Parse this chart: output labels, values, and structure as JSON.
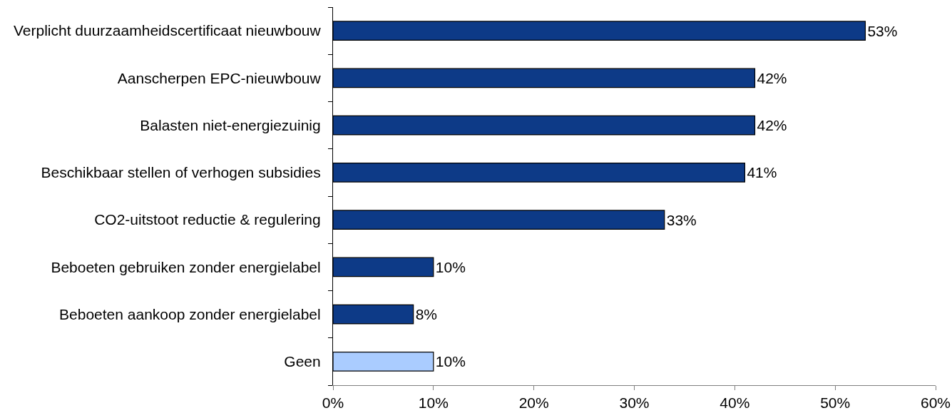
{
  "chart_data": {
    "type": "bar",
    "orientation": "horizontal",
    "categories": [
      "Verplicht duurzaamheidscertificaat nieuwbouw",
      "Aanscherpen EPC-nieuwbouw",
      "Balasten niet-energiezuinig",
      "Beschikbaar stellen of verhogen subsidies",
      "CO2-uitstoot reductie & regulering",
      "Beboeten gebruiken zonder energielabel",
      "Beboeten aankoop zonder energielabel",
      "Geen"
    ],
    "values": [
      53,
      42,
      42,
      41,
      33,
      10,
      8,
      10
    ],
    "colors": [
      "#0d3a87",
      "#0d3a87",
      "#0d3a87",
      "#0d3a87",
      "#0d3a87",
      "#0d3a87",
      "#0d3a87",
      "#aaccff"
    ],
    "value_labels": [
      "53%",
      "42%",
      "42%",
      "41%",
      "33%",
      "10%",
      "8%",
      "10%"
    ],
    "xlim": [
      0,
      60
    ],
    "xticks": [
      {
        "value": 0,
        "label": "0%"
      },
      {
        "value": 10,
        "label": "10%"
      },
      {
        "value": 20,
        "label": "20%"
      },
      {
        "value": 30,
        "label": "30%"
      },
      {
        "value": 40,
        "label": "40%"
      },
      {
        "value": 50,
        "label": "50%"
      },
      {
        "value": 60,
        "label": "60%"
      }
    ]
  }
}
